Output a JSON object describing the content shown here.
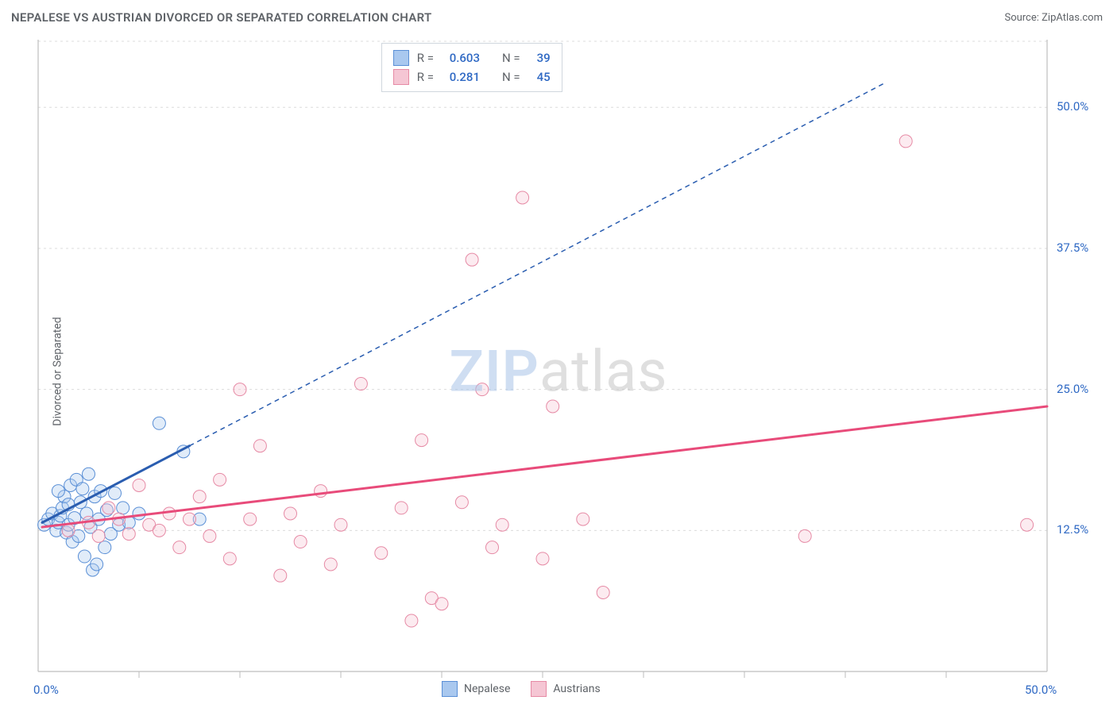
{
  "title": "NEPALESE VS AUSTRIAN DIVORCED OR SEPARATED CORRELATION CHART",
  "source_label": "Source: ZipAtlas.com",
  "ylabel": "Divorced or Separated",
  "watermark": {
    "zip": "ZIP",
    "atlas": "atlas"
  },
  "chart": {
    "type": "scatter",
    "xlim": [
      0,
      50
    ],
    "ylim": [
      0,
      56
    ],
    "x_origin_label": "0.0%",
    "x_max_label": "50.0%",
    "y_tick_labels": [
      "12.5%",
      "25.0%",
      "37.5%",
      "50.0%"
    ],
    "y_tick_values": [
      12.5,
      25.0,
      37.5,
      50.0
    ],
    "x_minor_ticks": [
      5,
      10,
      15,
      20,
      25,
      30,
      35,
      40,
      45
    ],
    "background_color": "#ffffff",
    "grid_color": "#dcdcdc",
    "axis_color": "#bdbdbd",
    "axis_label_color": "#2f69c4",
    "marker_radius": 8,
    "marker_stroke_width": 1,
    "marker_fill_opacity": 0.35,
    "trend_line_width": 3,
    "trend_dash": "6,5"
  },
  "series": [
    {
      "key": "nepalese",
      "label": "Nepalese",
      "color_fill": "#a9c8ef",
      "color_stroke": "#5a8fd6",
      "trend_color": "#2a5db0",
      "R": "0.603",
      "N": "39",
      "trend": {
        "x1": 0.2,
        "y1": 13.2,
        "x2": 7.5,
        "y2": 20.0,
        "ext_x2": 42,
        "ext_y2": 52.2
      },
      "points": [
        [
          0.3,
          13.0
        ],
        [
          0.5,
          13.5
        ],
        [
          0.7,
          14.0
        ],
        [
          0.9,
          12.5
        ],
        [
          1.0,
          13.2
        ],
        [
          1.1,
          13.8
        ],
        [
          1.2,
          14.5
        ],
        [
          1.3,
          15.5
        ],
        [
          1.4,
          12.3
        ],
        [
          1.5,
          13.0
        ],
        [
          1.5,
          14.8
        ],
        [
          1.6,
          16.5
        ],
        [
          1.7,
          11.5
        ],
        [
          1.8,
          13.6
        ],
        [
          1.9,
          17.0
        ],
        [
          2.0,
          12.0
        ],
        [
          2.1,
          15.0
        ],
        [
          2.2,
          16.2
        ],
        [
          2.3,
          10.2
        ],
        [
          2.4,
          14.0
        ],
        [
          2.5,
          17.5
        ],
        [
          2.6,
          12.8
        ],
        [
          2.7,
          9.0
        ],
        [
          2.8,
          15.5
        ],
        [
          3.0,
          13.5
        ],
        [
          3.1,
          16.0
        ],
        [
          3.3,
          11.0
        ],
        [
          3.4,
          14.3
        ],
        [
          3.6,
          12.2
        ],
        [
          3.8,
          15.8
        ],
        [
          4.0,
          13.0
        ],
        [
          4.2,
          14.5
        ],
        [
          4.5,
          13.2
        ],
        [
          5.0,
          14.0
        ],
        [
          6.0,
          22.0
        ],
        [
          7.2,
          19.5
        ],
        [
          8.0,
          13.5
        ],
        [
          2.9,
          9.5
        ],
        [
          1.0,
          16.0
        ]
      ]
    },
    {
      "key": "austrians",
      "label": "Austrians",
      "color_fill": "#f5c6d4",
      "color_stroke": "#e68aa5",
      "trend_color": "#e84b7a",
      "R": "0.281",
      "N": "45",
      "trend": {
        "x1": 0.2,
        "y1": 12.8,
        "x2": 50,
        "y2": 23.5,
        "ext_x2": 50,
        "ext_y2": 23.5
      },
      "points": [
        [
          1.5,
          12.5
        ],
        [
          2.5,
          13.2
        ],
        [
          3.0,
          12.0
        ],
        [
          3.5,
          14.5
        ],
        [
          4.0,
          13.5
        ],
        [
          4.5,
          12.2
        ],
        [
          5.0,
          16.5
        ],
        [
          5.5,
          13.0
        ],
        [
          6.0,
          12.5
        ],
        [
          6.5,
          14.0
        ],
        [
          7.0,
          11.0
        ],
        [
          7.5,
          13.5
        ],
        [
          8.0,
          15.5
        ],
        [
          8.5,
          12.0
        ],
        [
          9.0,
          17.0
        ],
        [
          9.5,
          10.0
        ],
        [
          10.0,
          25.0
        ],
        [
          10.5,
          13.5
        ],
        [
          11.0,
          20.0
        ],
        [
          12.0,
          8.5
        ],
        [
          12.5,
          14.0
        ],
        [
          13.0,
          11.5
        ],
        [
          14.0,
          16.0
        ],
        [
          14.5,
          9.5
        ],
        [
          15.0,
          13.0
        ],
        [
          16.0,
          25.5
        ],
        [
          17.0,
          10.5
        ],
        [
          18.0,
          14.5
        ],
        [
          18.5,
          4.5
        ],
        [
          19.0,
          20.5
        ],
        [
          19.5,
          6.5
        ],
        [
          20.0,
          6.0
        ],
        [
          21.0,
          15.0
        ],
        [
          21.5,
          36.5
        ],
        [
          22.0,
          25.0
        ],
        [
          23.0,
          13.0
        ],
        [
          24.0,
          42.0
        ],
        [
          25.0,
          10.0
        ],
        [
          25.5,
          23.5
        ],
        [
          27.0,
          13.5
        ],
        [
          28.0,
          7.0
        ],
        [
          38.0,
          12.0
        ],
        [
          43.0,
          47.0
        ],
        [
          49.0,
          13.0
        ],
        [
          22.5,
          11.0
        ]
      ]
    }
  ],
  "stats_box": {
    "r_label": "R =",
    "n_label": "N ="
  },
  "legend": {
    "items": [
      "Nepalese",
      "Austrians"
    ]
  }
}
